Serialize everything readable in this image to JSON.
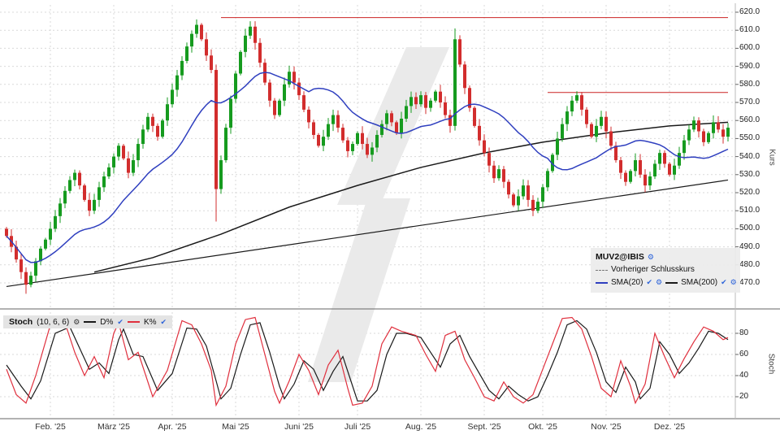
{
  "icons": {
    "gear": "⚙",
    "check": "✔"
  },
  "colors": {
    "up": "#169b1f",
    "down": "#d22d2d",
    "sma20": "#2f3fbf",
    "sma200": "#1a1a1a",
    "resistance": "#cc2222",
    "k": "#e0303e",
    "d": "#1a1a1a",
    "grid": "#d9d9d9",
    "watermark": "#eaeaea"
  },
  "chart_data": [
    {
      "type": "candlestick",
      "title": "MUV2@IBIS",
      "ylabel": "Kurs",
      "ylim": [
        462,
        622
      ],
      "grid": true,
      "y_ticks": [
        "620.0",
        "610.0",
        "600.0",
        "590.0",
        "580.0",
        "570.0",
        "560.0",
        "550.0",
        "540.0",
        "530.0",
        "520.0",
        "510.0",
        "500.0",
        "490.0",
        "480.0",
        "470.0"
      ],
      "months": [
        {
          "label": "Feb. '25",
          "i": 9
        },
        {
          "label": "März '25",
          "i": 22
        },
        {
          "label": "Apr. '25",
          "i": 34
        },
        {
          "label": "Mai '25",
          "i": 47
        },
        {
          "label": "Juni '25",
          "i": 60
        },
        {
          "label": "Juli '25",
          "i": 72
        },
        {
          "label": "Aug. '25",
          "i": 85
        },
        {
          "label": "Sept. '25",
          "i": 98
        },
        {
          "label": "Okt. '25",
          "i": 110
        },
        {
          "label": "Nov. '25",
          "i": 123
        },
        {
          "label": "Dez. '25",
          "i": 136
        }
      ],
      "candles": {
        "first_open": 500,
        "closes": [
          496,
          490,
          483,
          476,
          469,
          474,
          482,
          489,
          494,
          500,
          507,
          514,
          521,
          527,
          531,
          524,
          516,
          510,
          516,
          523,
          529,
          534,
          540,
          546,
          539,
          531,
          538,
          547,
          555,
          562,
          557,
          551,
          560,
          569,
          577,
          585,
          593,
          601,
          608,
          613,
          605,
          596,
          588,
          522,
          538,
          556,
          572,
          586,
          598,
          607,
          612,
          603,
          592,
          581,
          571,
          563,
          571,
          580,
          587,
          581,
          574,
          566,
          559,
          552,
          546,
          551,
          558,
          563,
          556,
          549,
          543,
          547,
          553,
          547,
          541,
          545,
          552,
          558,
          564,
          559,
          553,
          561,
          568,
          573,
          569,
          574,
          567,
          571,
          576,
          570,
          563,
          557,
          605,
          591,
          578,
          567,
          557,
          549,
          542,
          535,
          528,
          533,
          526,
          519,
          513,
          518,
          524,
          516,
          510,
          515,
          523,
          532,
          541,
          550,
          558,
          565,
          571,
          574,
          566,
          558,
          551,
          557,
          562,
          554,
          546,
          538,
          531,
          526,
          532,
          538,
          530,
          524,
          529,
          536,
          542,
          536,
          530,
          535,
          542,
          549,
          555,
          560,
          554,
          548,
          553,
          559,
          555,
          551,
          556
        ],
        "wick_overrides": {
          "4": {
            "low": 464
          },
          "39": {
            "high": 616
          },
          "43": {
            "low": 504
          },
          "50": {
            "high": 615
          },
          "92": {
            "high": 611
          },
          "108": {
            "low": 507
          }
        }
      },
      "overlays": {
        "sma20": {
          "name": "SMA(20)",
          "window": 20
        },
        "sma200": {
          "name": "SMA(200)",
          "points": [
            [
              18,
              476
            ],
            [
              30,
              484
            ],
            [
              44,
              497
            ],
            [
              58,
              512
            ],
            [
              72,
              524
            ],
            [
              85,
              534
            ],
            [
              98,
              542
            ],
            [
              110,
              548
            ],
            [
              123,
              553
            ],
            [
              136,
              557
            ],
            [
              148,
              559
            ]
          ]
        },
        "trendline": {
          "points": [
            [
              0,
              468
            ],
            [
              148,
              527
            ]
          ]
        },
        "resistance_lines": [
          {
            "price": 617,
            "from": 44,
            "to": 148
          },
          {
            "price": 575.5,
            "from": 111,
            "to": 148
          }
        ]
      },
      "legend": {
        "symbol": "MUV2@IBIS",
        "prev_close": "Vorheriger Schlusskurs",
        "sma20_label": "SMA(20)",
        "sma200_label": "SMA(200)"
      }
    },
    {
      "type": "line",
      "title": "Stoch",
      "ylabel": "Stoch",
      "ylim": [
        0,
        100
      ],
      "y_ticks": [
        "80",
        "60",
        "40",
        "20"
      ],
      "legend": {
        "title": "Stoch",
        "params": "(10, 6, 6)",
        "d_label": "D%",
        "k_label": "K%"
      },
      "series": [
        {
          "name": "K%",
          "waypoints": [
            [
              0,
              46
            ],
            [
              2,
              22
            ],
            [
              4,
              14
            ],
            [
              6,
              40
            ],
            [
              9,
              88
            ],
            [
              12,
              90
            ],
            [
              14,
              62
            ],
            [
              16,
              40
            ],
            [
              18,
              58
            ],
            [
              20,
              38
            ],
            [
              22,
              80
            ],
            [
              23,
              90
            ],
            [
              25,
              55
            ],
            [
              27,
              62
            ],
            [
              30,
              20
            ],
            [
              33,
              45
            ],
            [
              36,
              92
            ],
            [
              38,
              88
            ],
            [
              40,
              70
            ],
            [
              42,
              45
            ],
            [
              43,
              12
            ],
            [
              45,
              30
            ],
            [
              47,
              70
            ],
            [
              49,
              93
            ],
            [
              51,
              95
            ],
            [
              53,
              60
            ],
            [
              55,
              25
            ],
            [
              56,
              14
            ],
            [
              58,
              35
            ],
            [
              60,
              60
            ],
            [
              62,
              45
            ],
            [
              64,
              22
            ],
            [
              66,
              50
            ],
            [
              68,
              64
            ],
            [
              70,
              28
            ],
            [
              71,
              12
            ],
            [
              73,
              14
            ],
            [
              75,
              30
            ],
            [
              77,
              70
            ],
            [
              79,
              86
            ],
            [
              81,
              82
            ],
            [
              84,
              78
            ],
            [
              86,
              60
            ],
            [
              88,
              44
            ],
            [
              90,
              78
            ],
            [
              92,
              82
            ],
            [
              94,
              55
            ],
            [
              96,
              38
            ],
            [
              98,
              20
            ],
            [
              100,
              16
            ],
            [
              102,
              34
            ],
            [
              104,
              20
            ],
            [
              106,
              14
            ],
            [
              108,
              22
            ],
            [
              110,
              46
            ],
            [
              112,
              70
            ],
            [
              114,
              94
            ],
            [
              116,
              95
            ],
            [
              118,
              84
            ],
            [
              120,
              58
            ],
            [
              122,
              28
            ],
            [
              124,
              20
            ],
            [
              126,
              54
            ],
            [
              128,
              30
            ],
            [
              129,
              14
            ],
            [
              131,
              32
            ],
            [
              133,
              80
            ],
            [
              135,
              58
            ],
            [
              137,
              38
            ],
            [
              139,
              56
            ],
            [
              141,
              72
            ],
            [
              143,
              86
            ],
            [
              145,
              82
            ],
            [
              147,
              74
            ],
            [
              148,
              76
            ]
          ]
        },
        {
          "name": "D%",
          "waypoints": [
            [
              0,
              50
            ],
            [
              3,
              30
            ],
            [
              5,
              18
            ],
            [
              7,
              35
            ],
            [
              10,
              80
            ],
            [
              13,
              86
            ],
            [
              15,
              66
            ],
            [
              17,
              46
            ],
            [
              19,
              52
            ],
            [
              21,
              42
            ],
            [
              23,
              74
            ],
            [
              24,
              84
            ],
            [
              26,
              60
            ],
            [
              28,
              58
            ],
            [
              31,
              26
            ],
            [
              34,
              42
            ],
            [
              37,
              85
            ],
            [
              39,
              84
            ],
            [
              41,
              68
            ],
            [
              43,
              35
            ],
            [
              44,
              18
            ],
            [
              46,
              28
            ],
            [
              48,
              60
            ],
            [
              50,
              88
            ],
            [
              52,
              90
            ],
            [
              54,
              62
            ],
            [
              56,
              30
            ],
            [
              57,
              18
            ],
            [
              59,
              32
            ],
            [
              61,
              54
            ],
            [
              63,
              46
            ],
            [
              65,
              26
            ],
            [
              67,
              44
            ],
            [
              69,
              58
            ],
            [
              71,
              30
            ],
            [
              72,
              16
            ],
            [
              74,
              16
            ],
            [
              76,
              26
            ],
            [
              78,
              60
            ],
            [
              80,
              80
            ],
            [
              82,
              80
            ],
            [
              85,
              76
            ],
            [
              87,
              62
            ],
            [
              89,
              48
            ],
            [
              91,
              70
            ],
            [
              93,
              78
            ],
            [
              95,
              58
            ],
            [
              97,
              42
            ],
            [
              99,
              26
            ],
            [
              101,
              18
            ],
            [
              103,
              30
            ],
            [
              105,
              22
            ],
            [
              107,
              16
            ],
            [
              109,
              20
            ],
            [
              111,
              40
            ],
            [
              113,
              62
            ],
            [
              115,
              88
            ],
            [
              117,
              92
            ],
            [
              119,
              84
            ],
            [
              121,
              62
            ],
            [
              123,
              34
            ],
            [
              125,
              24
            ],
            [
              127,
              48
            ],
            [
              129,
              34
            ],
            [
              130,
              18
            ],
            [
              132,
              28
            ],
            [
              134,
              72
            ],
            [
              136,
              60
            ],
            [
              138,
              42
            ],
            [
              140,
              52
            ],
            [
              142,
              66
            ],
            [
              144,
              82
            ],
            [
              146,
              80
            ],
            [
              148,
              74
            ]
          ]
        }
      ]
    }
  ]
}
